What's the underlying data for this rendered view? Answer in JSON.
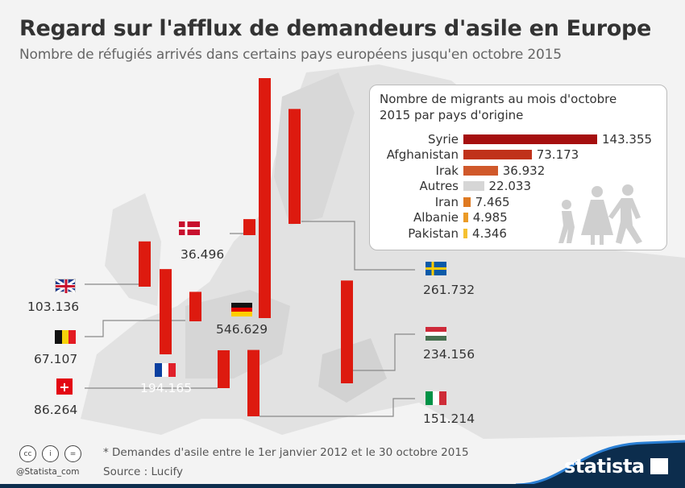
{
  "header": {
    "title": "Regard sur l'afflux de demandeurs d'asile en Europe",
    "subtitle": "Nombre de réfugiés arrivés dans certains pays européens jusqu'en octobre 2015"
  },
  "chart_data": [
    {
      "type": "bar",
      "title": "",
      "unit": "demandes d'asile",
      "categories": [
        "Allemagne",
        "Suède",
        "Hongrie",
        "France",
        "Italie",
        "Royaume-Uni",
        "Suisse",
        "Belgique",
        "Danemark"
      ],
      "values": [
        546629,
        261732,
        234156,
        194165,
        151214,
        103136,
        86264,
        67107,
        36496
      ],
      "labels": [
        "546.629",
        "261.732",
        "234.156",
        "194.165",
        "151.214",
        "103.136",
        "86.264",
        "67.107",
        "36.496"
      ],
      "bar_color": "#dd1a0f"
    },
    {
      "type": "bar",
      "orientation": "horizontal",
      "title": "Nombre de migrants au mois d'octobre 2015 par pays d'origine",
      "categories": [
        "Syrie",
        "Afghanistan",
        "Irak",
        "Autres",
        "Iran",
        "Albanie",
        "Pakistan"
      ],
      "values": [
        143355,
        73173,
        36932,
        22033,
        7465,
        4985,
        4346
      ],
      "labels": [
        "143.355",
        "73.173",
        "36.932",
        "22.033",
        "7.465",
        "4.985",
        "4.346"
      ],
      "colors": [
        "#a50f0f",
        "#c0321a",
        "#d0582a",
        "#d6d6d6",
        "#df7a22",
        "#eb9a26",
        "#f5c030"
      ]
    }
  ],
  "footer": {
    "note": "* Demandes d'asile entre le 1er janvier 2012 et le 30 octobre 2015",
    "source": "Source : Lucify",
    "handle": "@Statista_com",
    "logo": "statista",
    "license_icons": [
      "cc",
      "i",
      "="
    ]
  },
  "colors": {
    "bar": "#dd1a0f",
    "logo_bg": "#0c2d4d",
    "accent": "#1a6fc0"
  }
}
